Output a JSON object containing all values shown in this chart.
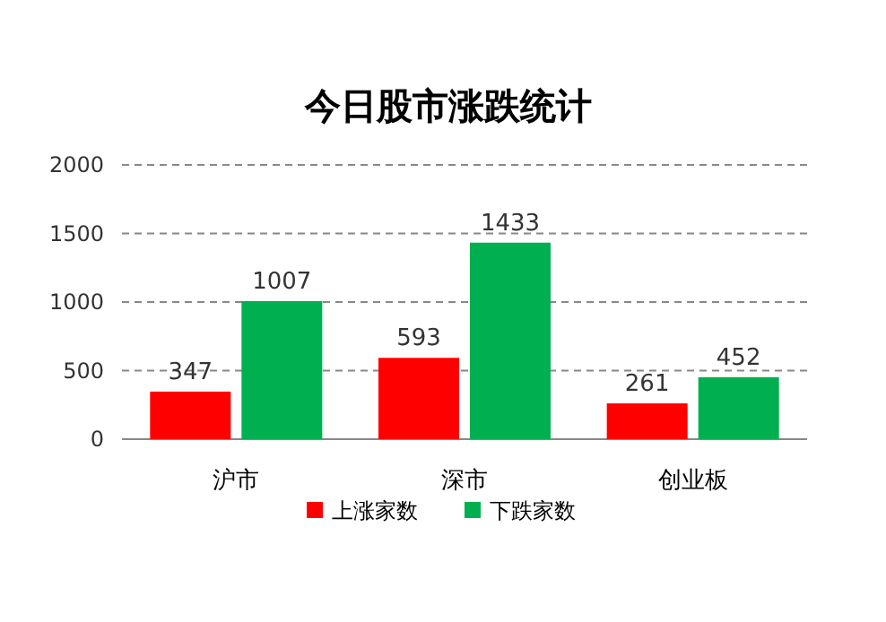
{
  "chart_data": {
    "type": "bar",
    "title": "今日股市涨跌统计",
    "categories": [
      "沪市",
      "深市",
      "创业板"
    ],
    "series": [
      {
        "name": "上涨家数",
        "color": "#ff0000",
        "values": [
          347,
          593,
          261
        ]
      },
      {
        "name": "下跌家数",
        "color": "#00b050",
        "values": [
          1007,
          1433,
          452
        ]
      }
    ],
    "ylim": [
      0,
      2000
    ],
    "yticks": [
      0,
      500,
      1000,
      1500,
      2000
    ],
    "grid": "y",
    "data_labels": true,
    "legend": "bottom"
  }
}
